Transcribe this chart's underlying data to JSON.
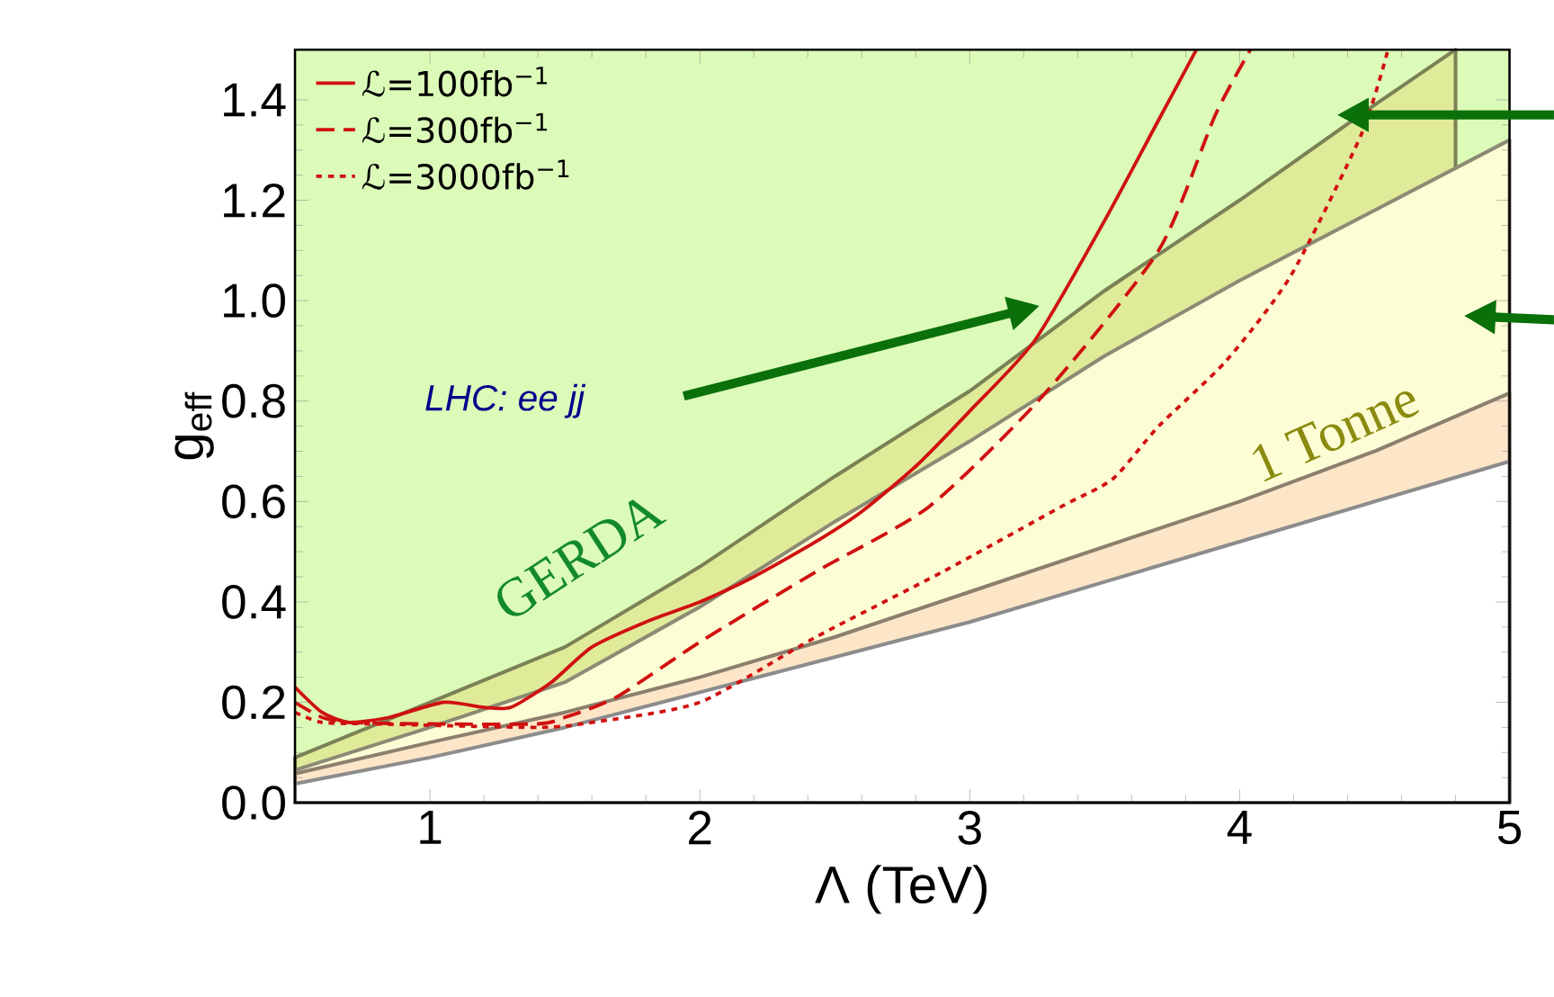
{
  "chart_data": {
    "type": "line",
    "xlabel": "Λ (TeV)",
    "ylabel": "g$_{eff}$",
    "xlim": [
      0.5,
      5
    ],
    "ylim": [
      0,
      1.5
    ],
    "xticks": [
      1,
      2,
      3,
      4,
      5
    ],
    "yticks": [
      {
        "value": 0,
        "label": "0.0"
      },
      0.2,
      0.4,
      0.6,
      0.8,
      {
        "value": 1,
        "label": "1.0"
      },
      1.2,
      1.4
    ],
    "legend": "top left",
    "bands": [
      {
        "axis": "y",
        "from": 0,
        "to": 1.5,
        "color": "#dcfbb9"
      }
    ],
    "annotations": [
      "LHC: ee jj",
      "GERDA",
      "1 Tonne"
    ],
    "series": [
      {
        "type": "area",
        "color": "#e0eb9a",
        "x": [
          0.5,
          1,
          1.5,
          2,
          2.5,
          3,
          3.5,
          4,
          4.5,
          4.8
        ],
        "values": [
          0.09,
          0.2,
          0.31,
          0.47,
          0.65,
          0.82,
          1.02,
          1.2,
          1.39,
          1.5
        ]
      },
      {
        "type": "area",
        "color": "#fdfdd5",
        "x": [
          0.5,
          1,
          1.5,
          2,
          2.5,
          3,
          3.5,
          4,
          4.5,
          5
        ],
        "values": [
          0.065,
          0.15,
          0.24,
          0.39,
          0.56,
          0.72,
          0.89,
          1.04,
          1.18,
          1.32
        ]
      },
      {
        "type": "area",
        "color": "#fde6c8",
        "x": [
          0.5,
          1,
          1.5,
          2,
          2.5,
          3,
          3.5,
          4,
          4.5,
          5
        ],
        "values": [
          0.058,
          0.12,
          0.18,
          0.25,
          0.33,
          0.42,
          0.51,
          0.6,
          0.7,
          0.816
        ]
      },
      {
        "type": "area",
        "color": "#ffffff",
        "x": [
          0.5,
          1,
          1.5,
          2,
          2.5,
          3,
          3.5,
          4,
          4.5,
          5
        ],
        "values": [
          0.038,
          0.09,
          0.15,
          0.22,
          0.29,
          0.36,
          0.44,
          0.52,
          0.6,
          0.68
        ]
      },
      {
        "name": "ℒ=100fb$^{−1}$",
        "line_style": "solid",
        "color": "#d01010",
        "x": [
          0.5,
          0.6,
          0.7,
          0.85,
          1.05,
          1.2,
          1.3,
          1.45,
          1.6,
          1.8,
          2.0,
          2.2,
          2.43,
          2.6,
          2.8,
          3.0,
          3.24,
          3.49,
          3.7,
          3.84
        ],
        "values": [
          0.23,
          0.18,
          0.16,
          0.17,
          0.2,
          0.19,
          0.19,
          0.24,
          0.31,
          0.36,
          0.4,
          0.45,
          0.52,
          0.58,
          0.67,
          0.78,
          0.92,
          1.15,
          1.36,
          1.5
        ]
      },
      {
        "name": "ℒ=300fb$^{−1}$",
        "line_style": "dashed",
        "color": "#d01010",
        "x": [
          0.5,
          0.6,
          0.7,
          1.0,
          1.4,
          1.5,
          1.69,
          2.0,
          2.43,
          2.85,
          3.27,
          3.7,
          3.91,
          4.04
        ],
        "values": [
          0.2,
          0.17,
          0.16,
          0.157,
          0.157,
          0.17,
          0.21,
          0.32,
          0.46,
          0.59,
          0.81,
          1.1,
          1.37,
          1.5
        ]
      },
      {
        "name": "ℒ=3000fb$^{−1}$",
        "line_style": "dotted",
        "color": "#d01010",
        "x": [
          0.5,
          0.6,
          0.8,
          1.4,
          1.6,
          2.0,
          2.43,
          2.9,
          3.34,
          3.53,
          3.7,
          3.95,
          4.19,
          4.45,
          4.55
        ],
        "values": [
          0.18,
          0.16,
          0.157,
          0.15,
          0.16,
          0.2,
          0.33,
          0.46,
          0.59,
          0.645,
          0.75,
          0.88,
          1.05,
          1.33,
          1.5
        ]
      }
    ]
  }
}
